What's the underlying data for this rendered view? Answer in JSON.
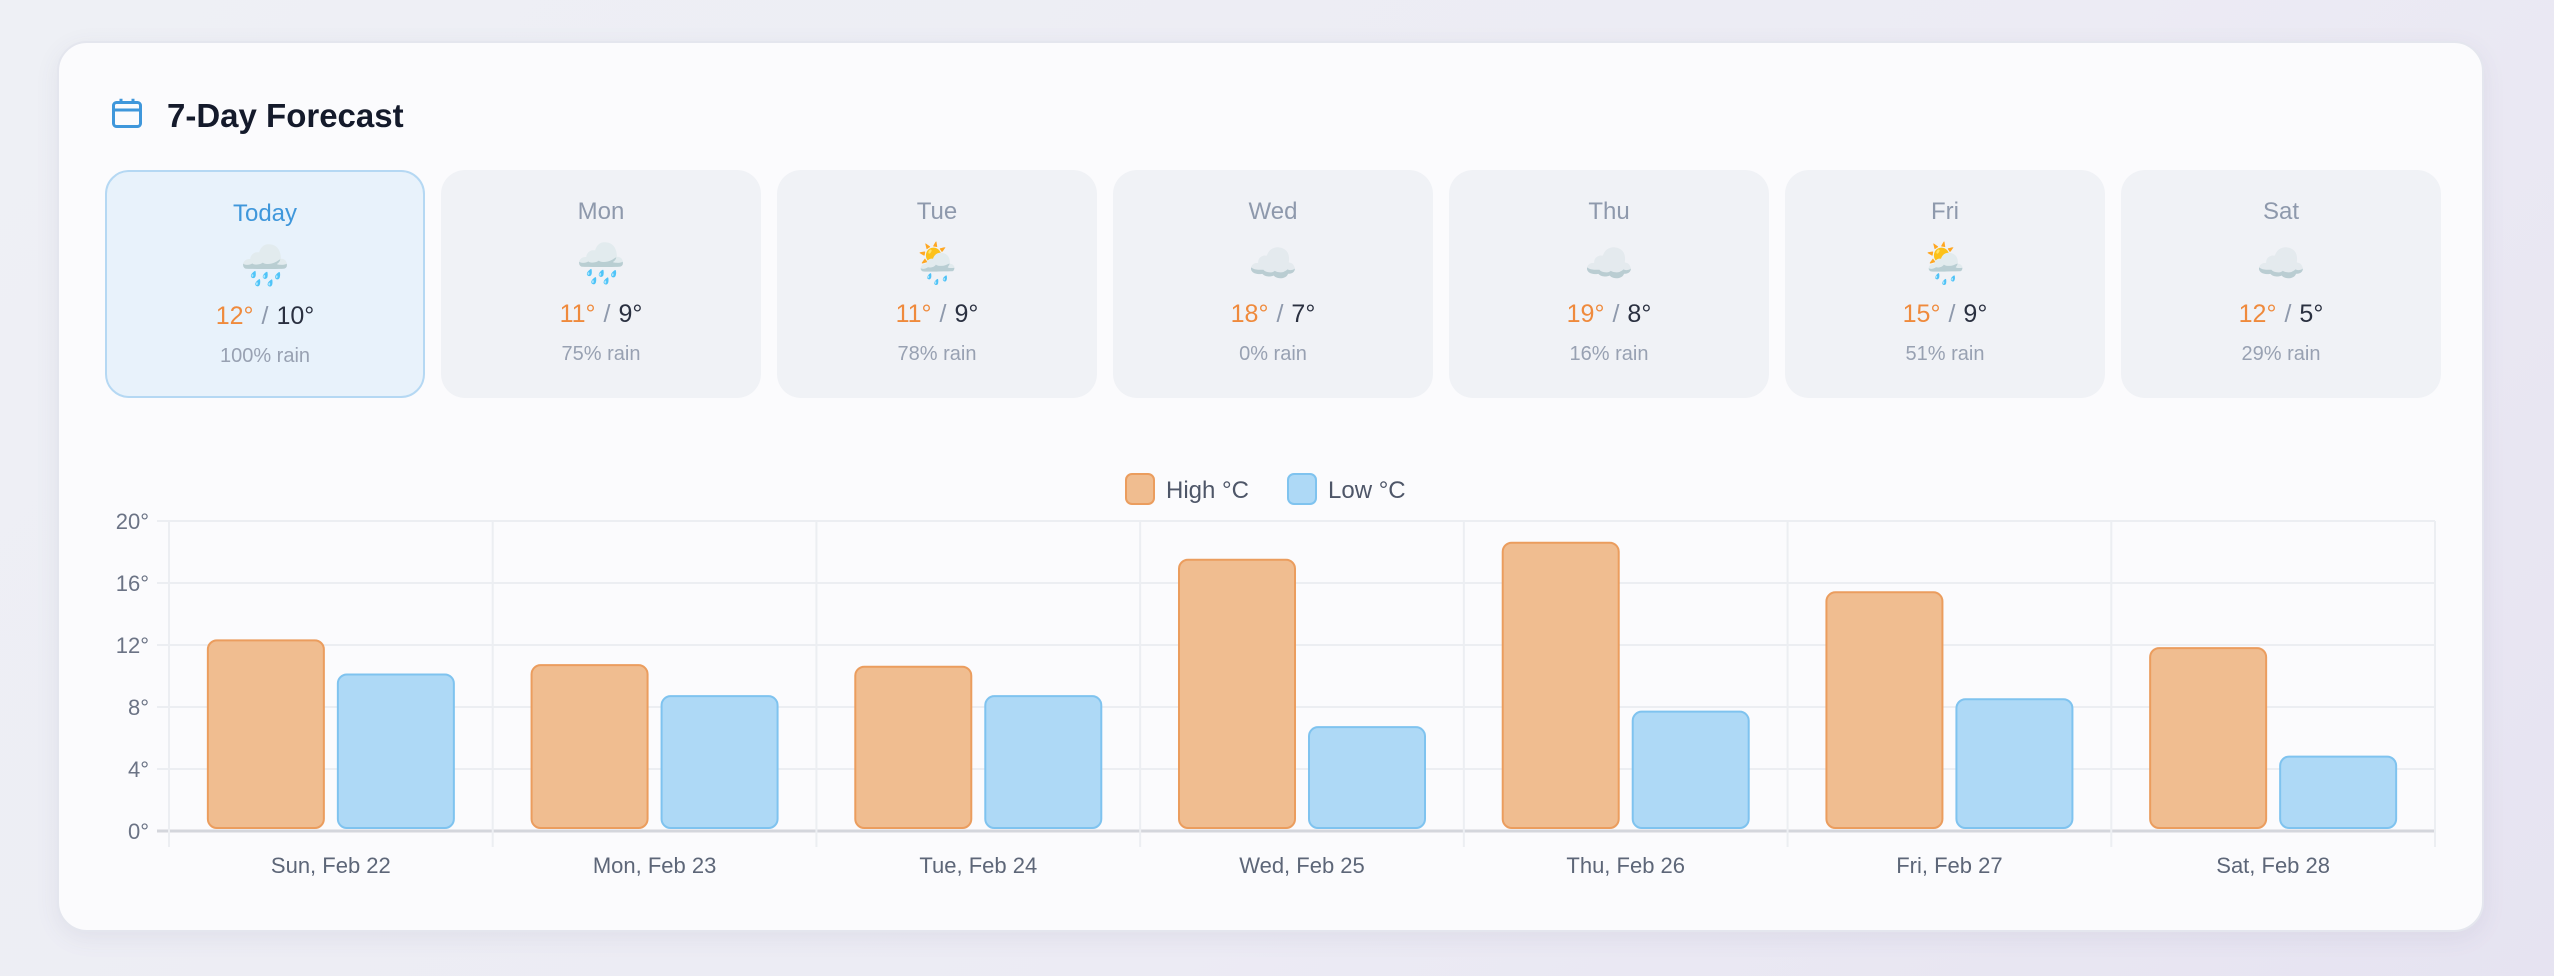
{
  "header": {
    "title": "7-Day Forecast",
    "icon": "calendar-icon"
  },
  "days": [
    {
      "name": "Today",
      "icon": "🌧️",
      "high": "12°",
      "low": "10°",
      "rain": "100% rain"
    },
    {
      "name": "Mon",
      "icon": "🌧️",
      "high": "11°",
      "low": "9°",
      "rain": "75% rain"
    },
    {
      "name": "Tue",
      "icon": "🌦️",
      "high": "11°",
      "low": "9°",
      "rain": "78% rain"
    },
    {
      "name": "Wed",
      "icon": "☁️",
      "high": "18°",
      "low": "7°",
      "rain": "0% rain"
    },
    {
      "name": "Thu",
      "icon": "☁️",
      "high": "19°",
      "low": "8°",
      "rain": "16% rain"
    },
    {
      "name": "Fri",
      "icon": "🌦️",
      "high": "15°",
      "low": "9°",
      "rain": "51% rain"
    },
    {
      "name": "Sat",
      "icon": "☁️",
      "high": "12°",
      "low": "5°",
      "rain": "29% rain"
    }
  ],
  "chart_data": {
    "type": "bar",
    "categories": [
      "Sun, Feb 22",
      "Mon, Feb 23",
      "Tue, Feb 24",
      "Wed, Feb 25",
      "Thu, Feb 26",
      "Fri, Feb 27",
      "Sat, Feb 28"
    ],
    "series": [
      {
        "name": "High °C",
        "values": [
          12.3,
          10.7,
          10.6,
          17.5,
          18.6,
          15.4,
          11.8
        ],
        "color": "#f0bd90",
        "border": "#eb9d5e"
      },
      {
        "name": "Low °C",
        "values": [
          10.1,
          8.7,
          8.7,
          6.7,
          7.7,
          8.5,
          4.8
        ],
        "color": "#aed9f6",
        "border": "#7fc3ef"
      }
    ],
    "yticks": [
      "0°",
      "4°",
      "8°",
      "12°",
      "16°",
      "20°"
    ],
    "ylim": [
      0,
      20
    ],
    "grid": true,
    "legend": "top-center"
  },
  "colors": {
    "accent": "#3f97db",
    "high": "#ef8a3c"
  }
}
